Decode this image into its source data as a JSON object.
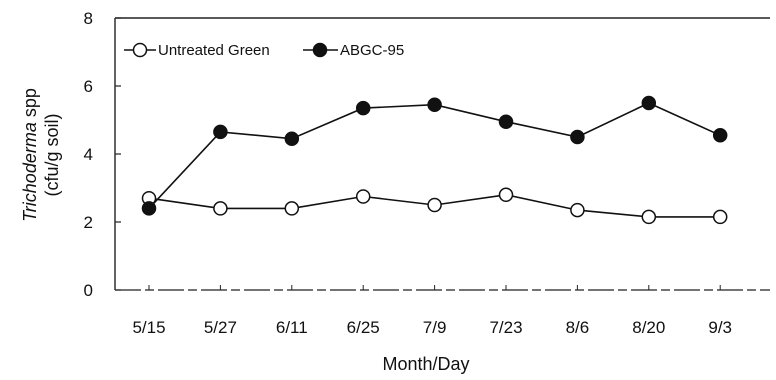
{
  "chart_data": {
    "type": "line",
    "title": "",
    "xlabel": "Month/Day",
    "ylabel_italic": "Trichoderma",
    "ylabel_rest": " spp",
    "ylabel_line2": "(cfu/g soil)",
    "ylim": [
      0,
      8
    ],
    "yticks": [
      "0",
      "2",
      "4",
      "6",
      "8"
    ],
    "categories": [
      "5/15",
      "5/27",
      "6/11",
      "6/25",
      "7/9",
      "7/23",
      "8/6",
      "8/20",
      "9/3"
    ],
    "legend_position": "top-left",
    "grid": false,
    "series": [
      {
        "name": "Untreated Green",
        "marker": "open-circle",
        "values": [
          2.7,
          2.4,
          2.4,
          2.75,
          2.5,
          2.8,
          2.35,
          2.15,
          2.15
        ]
      },
      {
        "name": "ABGC-95",
        "marker": "filled-circle",
        "values": [
          2.4,
          4.65,
          4.45,
          5.35,
          5.45,
          4.95,
          4.5,
          5.5,
          4.55
        ]
      }
    ],
    "colors": {
      "line": "#111111",
      "open_fill": "#ffffff",
      "filled_fill": "#111111"
    }
  }
}
